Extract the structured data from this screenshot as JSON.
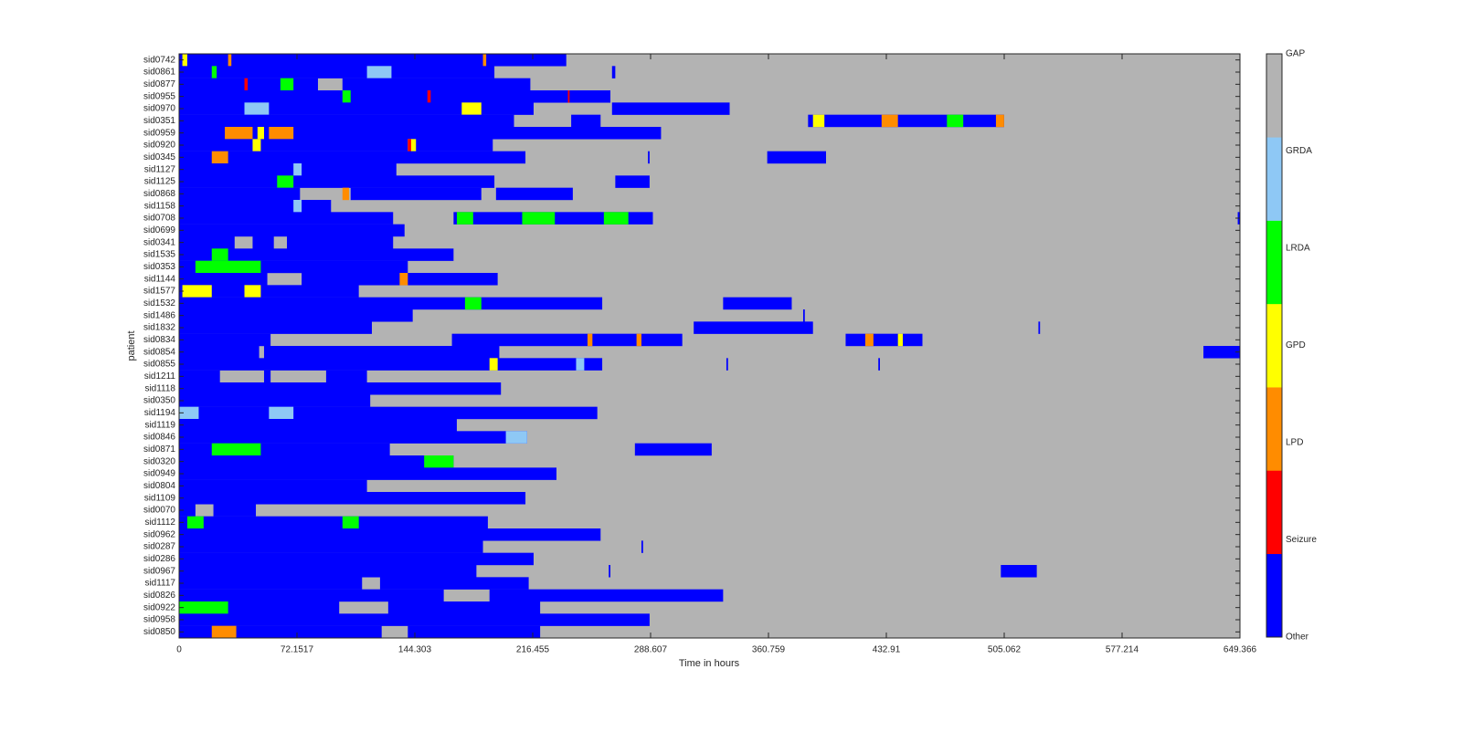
{
  "chart_data": {
    "type": "state-timeline",
    "xlabel": "Time in hours",
    "ylabel": "patient",
    "xlim": [
      0,
      649.366
    ],
    "xticks": [
      0,
      72.1517,
      144.303,
      216.455,
      288.607,
      360.759,
      432.91,
      505.062,
      577.214,
      649.366
    ],
    "background_state": "GAP",
    "states": [
      {
        "name": "Other",
        "color": "#0000ff"
      },
      {
        "name": "Seizure",
        "color": "#ff0000"
      },
      {
        "name": "LPD",
        "color": "#ff8c00"
      },
      {
        "name": "GPD",
        "color": "#ffff00"
      },
      {
        "name": "LRDA",
        "color": "#00ff00"
      },
      {
        "name": "GRDA",
        "color": "#8ec8f5"
      },
      {
        "name": "GAP",
        "color": "#b3b3b3"
      }
    ],
    "rows": [
      {
        "name": "sid0742",
        "segments": [
          [
            0,
            237,
            "Other"
          ],
          [
            2,
            5,
            "GPD"
          ],
          [
            30,
            32,
            "LPD"
          ],
          [
            186,
            188,
            "LPD"
          ]
        ]
      },
      {
        "name": "sid0861",
        "segments": [
          [
            0,
            193,
            "Other"
          ],
          [
            20,
            23,
            "LRDA"
          ],
          [
            115,
            130,
            "GRDA"
          ],
          [
            265,
            267,
            "Other"
          ]
        ]
      },
      {
        "name": "sid0877",
        "segments": [
          [
            0,
            85,
            "Other"
          ],
          [
            100,
            215,
            "Other"
          ],
          [
            40,
            42,
            "Seizure"
          ],
          [
            62,
            70,
            "LRDA"
          ]
        ]
      },
      {
        "name": "sid0955",
        "segments": [
          [
            0,
            264,
            "Other"
          ],
          [
            100,
            105,
            "LRDA"
          ],
          [
            152,
            154,
            "Seizure"
          ],
          [
            238,
            239,
            "Seizure"
          ]
        ]
      },
      {
        "name": "sid0970",
        "segments": [
          [
            0,
            217,
            "Other"
          ],
          [
            265,
            337,
            "Other"
          ],
          [
            40,
            55,
            "GRDA"
          ],
          [
            173,
            185,
            "GPD"
          ]
        ]
      },
      {
        "name": "sid0351",
        "segments": [
          [
            0,
            205,
            "Other"
          ],
          [
            240,
            258,
            "Other"
          ],
          [
            385,
            505,
            "Other"
          ],
          [
            388,
            395,
            "GPD"
          ],
          [
            430,
            440,
            "LPD"
          ],
          [
            470,
            480,
            "LRDA"
          ],
          [
            500,
            505,
            "LPD"
          ]
        ]
      },
      {
        "name": "sid0959",
        "segments": [
          [
            0,
            295,
            "Other"
          ],
          [
            28,
            45,
            "LPD"
          ],
          [
            48,
            52,
            "GPD"
          ],
          [
            55,
            70,
            "LPD"
          ]
        ]
      },
      {
        "name": "sid0920",
        "segments": [
          [
            0,
            192,
            "Other"
          ],
          [
            45,
            50,
            "GPD"
          ],
          [
            140,
            145,
            "GPD"
          ],
          [
            140,
            142,
            "Seizure"
          ]
        ]
      },
      {
        "name": "sid0345",
        "segments": [
          [
            0,
            212,
            "Other"
          ],
          [
            287,
            288,
            "Other"
          ],
          [
            360,
            396,
            "Other"
          ],
          [
            20,
            30,
            "LPD"
          ]
        ]
      },
      {
        "name": "sid1127",
        "segments": [
          [
            0,
            133,
            "Other"
          ],
          [
            70,
            75,
            "GRDA"
          ]
        ]
      },
      {
        "name": "sid1125",
        "segments": [
          [
            0,
            193,
            "Other"
          ],
          [
            267,
            288,
            "Other"
          ],
          [
            60,
            70,
            "LRDA"
          ]
        ]
      },
      {
        "name": "sid0868",
        "segments": [
          [
            0,
            74,
            "Other"
          ],
          [
            105,
            185,
            "Other"
          ],
          [
            194,
            241,
            "Other"
          ],
          [
            100,
            104,
            "LPD"
          ]
        ]
      },
      {
        "name": "sid1158",
        "segments": [
          [
            0,
            93,
            "Other"
          ],
          [
            70,
            75,
            "GRDA"
          ]
        ]
      },
      {
        "name": "sid0708",
        "segments": [
          [
            0,
            131,
            "Other"
          ],
          [
            168,
            290,
            "Other"
          ],
          [
            170,
            180,
            "LRDA"
          ],
          [
            210,
            230,
            "LRDA"
          ],
          [
            260,
            275,
            "LRDA"
          ],
          [
            648,
            649.366,
            "Other"
          ]
        ]
      },
      {
        "name": "sid0699",
        "segments": [
          [
            0,
            138,
            "Other"
          ]
        ]
      },
      {
        "name": "sid0341",
        "segments": [
          [
            0,
            34,
            "Other"
          ],
          [
            45,
            58,
            "Other"
          ],
          [
            66,
            131,
            "Other"
          ]
        ]
      },
      {
        "name": "sid1535",
        "segments": [
          [
            0,
            168,
            "Other"
          ],
          [
            20,
            30,
            "LRDA"
          ]
        ]
      },
      {
        "name": "sid0353",
        "segments": [
          [
            0,
            140,
            "Other"
          ],
          [
            10,
            50,
            "LRDA"
          ]
        ]
      },
      {
        "name": "sid1144",
        "segments": [
          [
            0,
            54,
            "Other"
          ],
          [
            75,
            195,
            "Other"
          ],
          [
            135,
            140,
            "LPD"
          ]
        ]
      },
      {
        "name": "sid1577",
        "segments": [
          [
            0,
            110,
            "Other"
          ],
          [
            2,
            20,
            "GPD"
          ],
          [
            40,
            50,
            "GPD"
          ]
        ]
      },
      {
        "name": "sid1532",
        "segments": [
          [
            0,
            259,
            "Other"
          ],
          [
            333,
            375,
            "Other"
          ],
          [
            175,
            185,
            "LRDA"
          ]
        ]
      },
      {
        "name": "sid1486",
        "segments": [
          [
            0,
            143,
            "Other"
          ],
          [
            382,
            383,
            "Other"
          ]
        ]
      },
      {
        "name": "sid1832",
        "segments": [
          [
            0,
            118,
            "Other"
          ],
          [
            315,
            388,
            "Other"
          ],
          [
            526,
            527,
            "Other"
          ]
        ]
      },
      {
        "name": "sid0834",
        "segments": [
          [
            0,
            56,
            "Other"
          ],
          [
            167,
            308,
            "Other"
          ],
          [
            408,
            455,
            "Other"
          ],
          [
            250,
            253,
            "LPD"
          ],
          [
            280,
            283,
            "LPD"
          ],
          [
            420,
            425,
            "LPD"
          ],
          [
            440,
            443,
            "GPD"
          ]
        ]
      },
      {
        "name": "sid0854",
        "segments": [
          [
            0,
            49,
            "Other"
          ],
          [
            52,
            196,
            "Other"
          ],
          [
            627,
            649.366,
            "Other"
          ]
        ]
      },
      {
        "name": "sid0855",
        "segments": [
          [
            0,
            259,
            "Other"
          ],
          [
            335,
            336,
            "Other"
          ],
          [
            428,
            429,
            "Other"
          ],
          [
            190,
            195,
            "GPD"
          ],
          [
            243,
            248,
            "GRDA"
          ]
        ]
      },
      {
        "name": "sid1211",
        "segments": [
          [
            0,
            25,
            "Other"
          ],
          [
            52,
            56,
            "Other"
          ],
          [
            90,
            115,
            "Other"
          ]
        ]
      },
      {
        "name": "sid1118",
        "segments": [
          [
            0,
            197,
            "Other"
          ]
        ]
      },
      {
        "name": "sid0350",
        "segments": [
          [
            0,
            117,
            "Other"
          ]
        ]
      },
      {
        "name": "sid1194",
        "segments": [
          [
            0,
            256,
            "Other"
          ],
          [
            0,
            12,
            "GRDA"
          ],
          [
            55,
            70,
            "GRDA"
          ]
        ]
      },
      {
        "name": "sid1119",
        "segments": [
          [
            0,
            170,
            "Other"
          ]
        ]
      },
      {
        "name": "sid0846",
        "segments": [
          [
            0,
            213,
            "Other"
          ],
          [
            200,
            213,
            "GRDA"
          ]
        ]
      },
      {
        "name": "sid0871",
        "segments": [
          [
            0,
            129,
            "Other"
          ],
          [
            279,
            326,
            "Other"
          ],
          [
            20,
            50,
            "LRDA"
          ]
        ]
      },
      {
        "name": "sid0320",
        "segments": [
          [
            0,
            168,
            "Other"
          ],
          [
            150,
            168,
            "LRDA"
          ]
        ]
      },
      {
        "name": "sid0949",
        "segments": [
          [
            0,
            231,
            "Other"
          ]
        ]
      },
      {
        "name": "sid0804",
        "segments": [
          [
            0,
            115,
            "Other"
          ]
        ]
      },
      {
        "name": "sid1109",
        "segments": [
          [
            0,
            212,
            "Other"
          ]
        ]
      },
      {
        "name": "sid0070",
        "segments": [
          [
            0,
            10,
            "Other"
          ],
          [
            21,
            47,
            "Other"
          ]
        ]
      },
      {
        "name": "sid1112",
        "segments": [
          [
            0,
            189,
            "Other"
          ],
          [
            5,
            15,
            "LRDA"
          ],
          [
            100,
            110,
            "LRDA"
          ]
        ]
      },
      {
        "name": "sid0962",
        "segments": [
          [
            0,
            258,
            "Other"
          ]
        ]
      },
      {
        "name": "sid0287",
        "segments": [
          [
            0,
            186,
            "Other"
          ],
          [
            283,
            284,
            "Other"
          ]
        ]
      },
      {
        "name": "sid0286",
        "segments": [
          [
            0,
            217,
            "Other"
          ]
        ]
      },
      {
        "name": "sid0967",
        "segments": [
          [
            0,
            182,
            "Other"
          ],
          [
            263,
            264,
            "Other"
          ],
          [
            503,
            525,
            "Other"
          ]
        ]
      },
      {
        "name": "sid1117",
        "segments": [
          [
            0,
            112,
            "Other"
          ],
          [
            123,
            214,
            "Other"
          ]
        ]
      },
      {
        "name": "sid0826",
        "segments": [
          [
            0,
            162,
            "Other"
          ],
          [
            190,
            333,
            "Other"
          ]
        ]
      },
      {
        "name": "sid0922",
        "segments": [
          [
            0,
            98,
            "Other"
          ],
          [
            128,
            221,
            "Other"
          ],
          [
            0,
            30,
            "LRDA"
          ]
        ]
      },
      {
        "name": "sid0958",
        "segments": [
          [
            0,
            288,
            "Other"
          ]
        ]
      },
      {
        "name": "sid0850",
        "segments": [
          [
            0,
            124,
            "Other"
          ],
          [
            140,
            221,
            "Other"
          ],
          [
            20,
            35,
            "LPD"
          ]
        ]
      }
    ]
  }
}
